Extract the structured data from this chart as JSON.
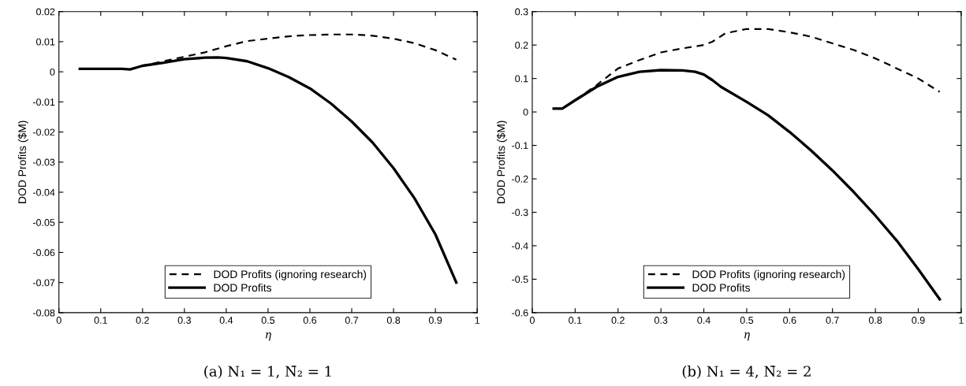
{
  "chart_data": [
    {
      "type": "line",
      "xlabel": "η",
      "ylabel": "DOD Profits ($M)",
      "annotations": [
        "(a) N₁ = 1, N̄₂ = 1"
      ],
      "xlim": [
        0,
        1
      ],
      "xticks": [
        0,
        0.1,
        0.2,
        0.3,
        0.4,
        0.5,
        0.6,
        0.7,
        0.8,
        0.9,
        1
      ],
      "ylim": [
        -0.08,
        0.02
      ],
      "yticks": [
        -0.08,
        -0.07,
        -0.06,
        -0.05,
        -0.04,
        -0.03,
        -0.02,
        -0.01,
        0,
        0.01,
        0.02
      ],
      "grid": false,
      "legend": "bottom",
      "series": [
        {
          "name": "DOD Profits (ignoring research)",
          "color": "#000000",
          "line_style": "dashed",
          "x": [
            0.05,
            0.1,
            0.15,
            0.17,
            0.2,
            0.25,
            0.3,
            0.35,
            0.4,
            0.45,
            0.5,
            0.55,
            0.6,
            0.65,
            0.7,
            0.75,
            0.8,
            0.85,
            0.9,
            0.95
          ],
          "values": [
            0.001,
            0.001,
            0.001,
            0.0008,
            0.002,
            0.0035,
            0.005,
            0.0065,
            0.0085,
            0.0102,
            0.011,
            0.0118,
            0.0122,
            0.0124,
            0.0124,
            0.012,
            0.011,
            0.0095,
            0.0072,
            0.004
          ]
        },
        {
          "name": "DOD Profits",
          "color": "#000000",
          "line_style": "solid",
          "x": [
            0.05,
            0.1,
            0.15,
            0.17,
            0.2,
            0.25,
            0.3,
            0.35,
            0.38,
            0.4,
            0.45,
            0.5,
            0.55,
            0.6,
            0.65,
            0.7,
            0.75,
            0.8,
            0.85,
            0.9,
            0.95
          ],
          "values": [
            0.001,
            0.001,
            0.001,
            0.0008,
            0.002,
            0.003,
            0.0042,
            0.0047,
            0.0048,
            0.0046,
            0.0035,
            0.0012,
            -0.0018,
            -0.0055,
            -0.0105,
            -0.0165,
            -0.0235,
            -0.032,
            -0.042,
            -0.054,
            -0.07
          ]
        }
      ]
    },
    {
      "type": "line",
      "xlabel": "η",
      "ylabel": "DOD Profits ($M)",
      "annotations": [
        "(b) N₁ = 4, N̄₂ = 2"
      ],
      "xlim": [
        0,
        1
      ],
      "xticks": [
        0,
        0.1,
        0.2,
        0.3,
        0.4,
        0.5,
        0.6,
        0.7,
        0.8,
        0.9,
        1
      ],
      "ylim": [
        -0.6,
        0.3
      ],
      "yticks": [
        -0.6,
        -0.5,
        -0.4,
        -0.3,
        -0.2,
        -0.1,
        0,
        0.1,
        0.2,
        0.3
      ],
      "grid": false,
      "legend": "bottom",
      "series": [
        {
          "name": "DOD Profits (ignoring research)",
          "color": "#000000",
          "line_style": "dashed",
          "x": [
            0.05,
            0.07,
            0.1,
            0.15,
            0.2,
            0.25,
            0.3,
            0.35,
            0.4,
            0.42,
            0.45,
            0.5,
            0.55,
            0.6,
            0.65,
            0.7,
            0.75,
            0.8,
            0.85,
            0.9,
            0.95
          ],
          "values": [
            0.01,
            0.01,
            0.035,
            0.08,
            0.13,
            0.155,
            0.178,
            0.19,
            0.2,
            0.21,
            0.235,
            0.248,
            0.248,
            0.238,
            0.225,
            0.205,
            0.185,
            0.16,
            0.13,
            0.1,
            0.06
          ]
        },
        {
          "name": "DOD Profits",
          "color": "#000000",
          "line_style": "solid",
          "x": [
            0.05,
            0.07,
            0.1,
            0.15,
            0.2,
            0.25,
            0.3,
            0.35,
            0.38,
            0.4,
            0.42,
            0.44,
            0.5,
            0.55,
            0.6,
            0.65,
            0.7,
            0.75,
            0.8,
            0.85,
            0.9,
            0.95
          ],
          "values": [
            0.01,
            0.01,
            0.035,
            0.075,
            0.105,
            0.12,
            0.125,
            0.124,
            0.12,
            0.112,
            0.095,
            0.075,
            0.03,
            -0.01,
            -0.06,
            -0.115,
            -0.175,
            -0.24,
            -0.31,
            -0.385,
            -0.47,
            -0.56
          ]
        }
      ]
    }
  ]
}
